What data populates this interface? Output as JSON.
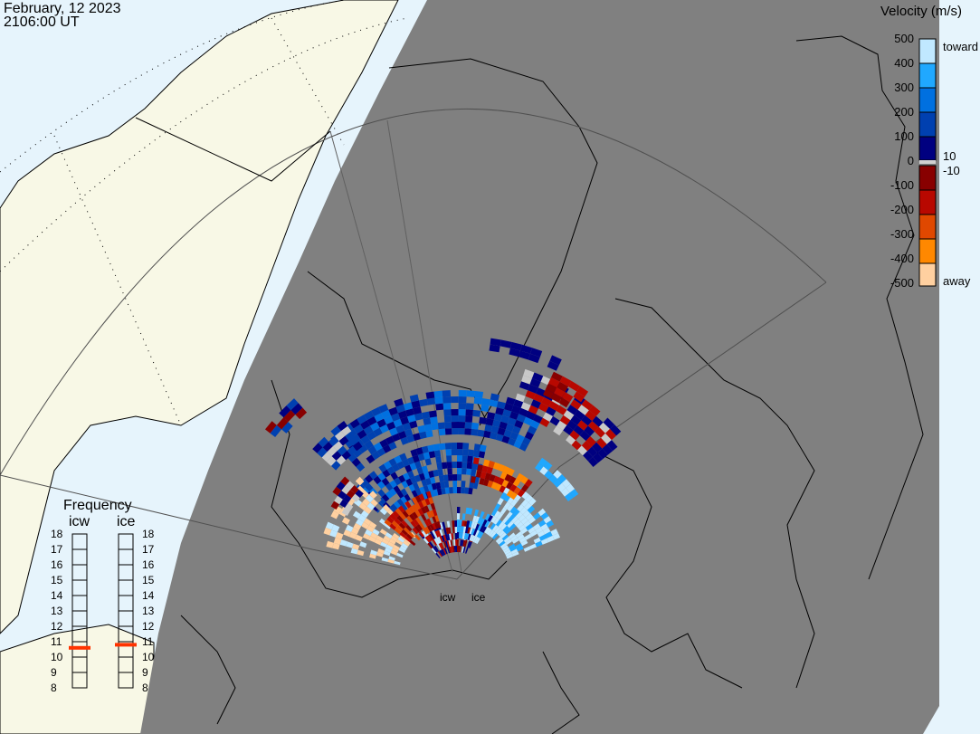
{
  "header": {
    "date": "February, 12 2023",
    "time": "2106:00 UT"
  },
  "colors": {
    "land_day": "#f8f8e6",
    "ocean_day": "#e6f4fc",
    "night": "#808080",
    "coast": "#000000",
    "no_data_gray": "#c8c8c8"
  },
  "velocity_scale": {
    "title": "Velocity (m/s)",
    "ticks": [
      "500",
      "400",
      "300",
      "200",
      "100",
      "0",
      "-100",
      "-200",
      "-300",
      "-400",
      "-500"
    ],
    "toward_label": "toward",
    "away_label": "away",
    "pos_threshold": "10",
    "neg_threshold": "-10",
    "segments": [
      {
        "range": "400 to 500",
        "color": "#c0e8ff"
      },
      {
        "range": "300 to 400",
        "color": "#20a8ff"
      },
      {
        "range": "200 to 300",
        "color": "#0070e0"
      },
      {
        "range": "100 to 200",
        "color": "#0040b0"
      },
      {
        "range": "10 to 100",
        "color": "#000080"
      },
      {
        "range": "-100 to -10",
        "color": "#880000"
      },
      {
        "range": "-200 to -100",
        "color": "#b80800"
      },
      {
        "range": "-300 to -200",
        "color": "#e04800"
      },
      {
        "range": "-400 to -300",
        "color": "#ff8800"
      },
      {
        "range": "-500 to -400",
        "color": "#ffd0a0"
      }
    ]
  },
  "frequency": {
    "title": "Frequency",
    "ticks": [
      "18",
      "17",
      "16",
      "15",
      "14",
      "13",
      "12",
      "11",
      "10",
      "9",
      "8"
    ],
    "radars": [
      {
        "name": "icw",
        "frequency_mhz": 10.6
      },
      {
        "name": "ice",
        "frequency_mhz": 10.8
      }
    ],
    "marker_color": "#ff3300"
  },
  "radar_labels": [
    "icw",
    "ice"
  ]
}
